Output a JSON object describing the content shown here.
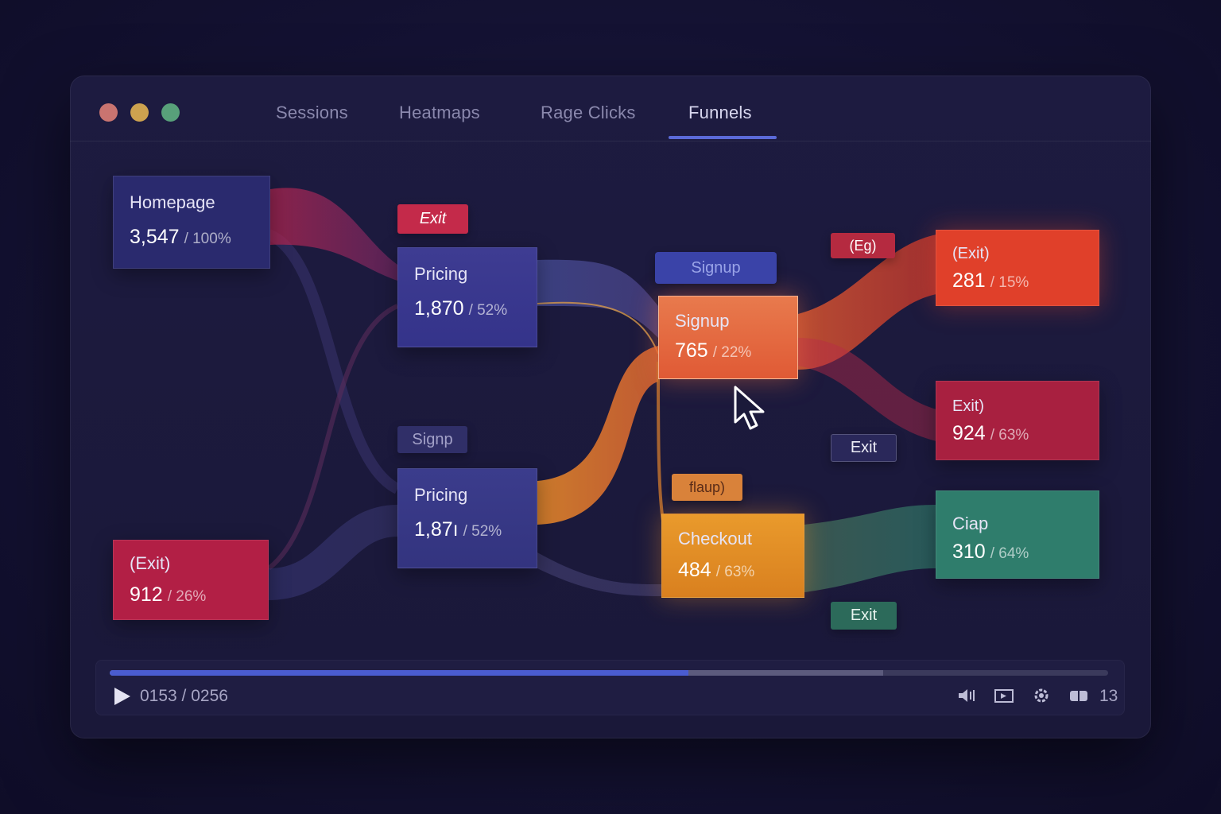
{
  "window": {
    "tabs": [
      {
        "label": "Sessions"
      },
      {
        "label": "Heatmaps"
      },
      {
        "label": "Rage Clicks"
      },
      {
        "label": "Funnels"
      }
    ],
    "active_tab": "Funnels"
  },
  "funnel": {
    "nodes": {
      "homepage": {
        "label": "Homepage",
        "value": "3,547",
        "pct": "/ 100%"
      },
      "pricing_top": {
        "label": "Pricing",
        "value": "1,870",
        "pct": "/ 52%"
      },
      "pricing_bottom": {
        "label": "Pricing",
        "value": "1,87ı",
        "pct": "/ 52%"
      },
      "exit_left": {
        "label": "(Exit)",
        "value": "912",
        "pct": "/ 26%"
      },
      "signup": {
        "label": "Signup",
        "value": "765",
        "pct": "/ 22%"
      },
      "checkout": {
        "label": "Checkout",
        "value": "484",
        "pct": "/ 63%"
      },
      "exit_top_right": {
        "label": "(Exit)",
        "value": "281",
        "pct": "/ 15%"
      },
      "exit_mid_right": {
        "label": "Exit)",
        "value": "924",
        "pct": "/ 63%"
      },
      "ciap": {
        "label": "Ciap",
        "value": "310",
        "pct": "/ 64%"
      }
    },
    "chips": {
      "exit_top": "Exit",
      "signup_chip_top": "Signup",
      "signup_chip_mid": "Signp",
      "eg_chip": "(Eg)",
      "exit_mid": "Exit",
      "flaup_chip": "flaup)",
      "exit_bottom": "Exit"
    },
    "colors": {
      "homepage": "#2a2a6e",
      "pricing": "#3a3a8a",
      "exit_red": "#b21f45",
      "signup": "#e0603a",
      "checkout": "#e38a25",
      "exit_orange": "#e0402a",
      "teal": "#2f7d6c"
    }
  },
  "player": {
    "time": "0153 / 0256",
    "progress": 0.58,
    "buffered": 0.775,
    "speed": "13",
    "controls": [
      "volume-icon",
      "screen-icon",
      "settings-icon",
      "captions-icon"
    ]
  }
}
